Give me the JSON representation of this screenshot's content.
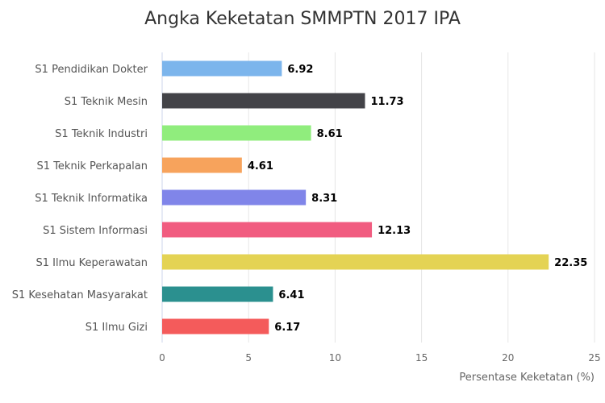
{
  "chart_data": {
    "type": "bar",
    "orientation": "horizontal",
    "title": "Angka Keketatan SMMPTN 2017 IPA",
    "xlabel": "Persentase Keketatan (%)",
    "ylabel": "",
    "xlim": [
      0,
      25
    ],
    "ticks": [
      "0",
      "5",
      "10",
      "15",
      "20",
      "25"
    ],
    "grid": true,
    "legend": "none",
    "categories": [
      "S1 Pendidikan Dokter",
      "S1 Teknik Mesin",
      "S1 Teknik Industri",
      "S1 Teknik Perkapalan",
      "S1 Teknik Informatika",
      "S1 Sistem Informasi",
      "S1 Ilmu Keperawatan",
      "S1 Kesehatan Masyarakat",
      "S1 Ilmu Gizi"
    ],
    "values": [
      6.92,
      11.73,
      8.61,
      4.61,
      8.31,
      12.13,
      22.35,
      6.41,
      6.17
    ],
    "value_labels": [
      "6.92",
      "11.73",
      "8.61",
      "4.61",
      "8.31",
      "12.13",
      "22.35",
      "6.41",
      "6.17"
    ],
    "colors": [
      "#7cb5ec",
      "#434348",
      "#90ed7d",
      "#f7a35c",
      "#8085e9",
      "#f15c80",
      "#e4d354",
      "#2b908f",
      "#f45b5b"
    ]
  }
}
